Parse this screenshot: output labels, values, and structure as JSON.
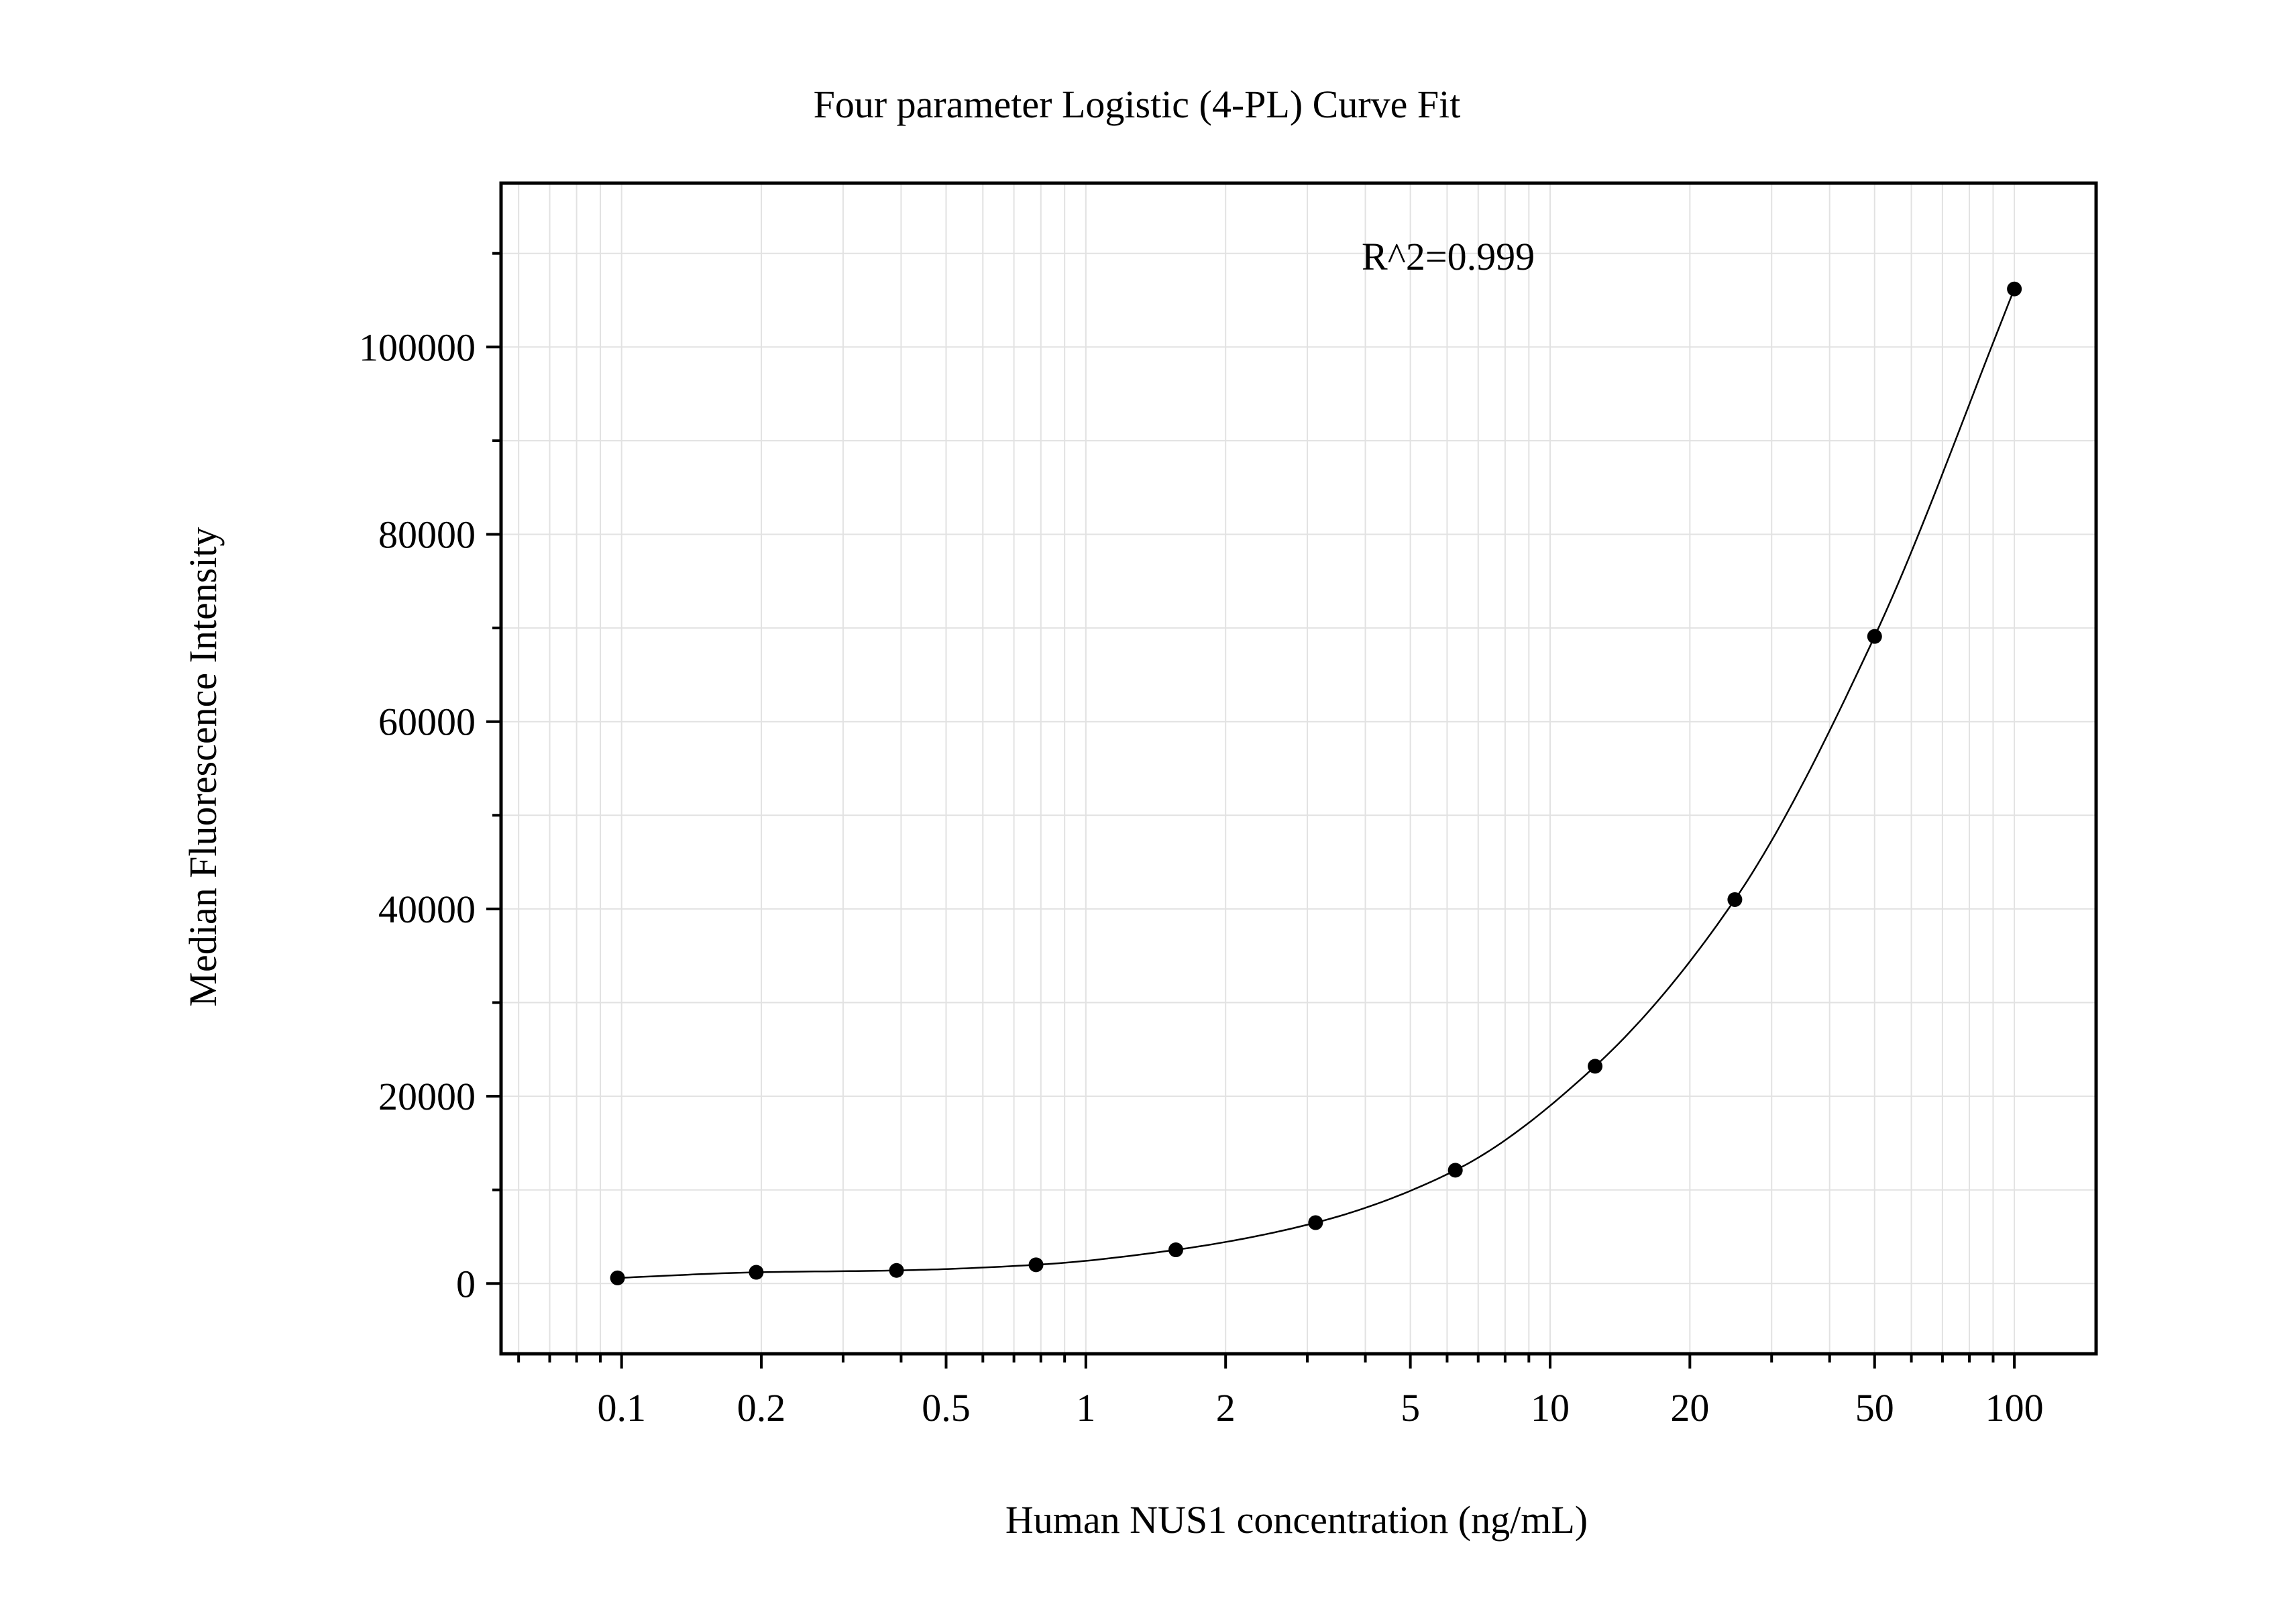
{
  "chart_data": {
    "type": "scatter",
    "title": "Four parameter Logistic (4-PL) Curve Fit",
    "xlabel": "Human NUS1 concentration (ng/mL)",
    "ylabel": "Median Fluorescence Intensity",
    "annotation": "R^2=0.999",
    "x_scale": "log",
    "xlim": [
      0.055,
      150
    ],
    "ylim": [
      -7500,
      117500
    ],
    "x_ticks": [
      0.1,
      0.2,
      0.5,
      1,
      2,
      5,
      10,
      20,
      50,
      100
    ],
    "x_tick_labels": [
      "0.1",
      "0.2",
      "0.5",
      "1",
      "2",
      "5",
      "10",
      "20",
      "50",
      "100"
    ],
    "y_ticks": [
      0,
      20000,
      40000,
      60000,
      80000,
      100000
    ],
    "y_tick_labels": [
      "0",
      "20000",
      "40000",
      "60000",
      "80000",
      "100000"
    ],
    "grid": true,
    "series": [
      {
        "x": [
          0.098,
          0.195,
          0.391,
          0.781,
          1.5625,
          3.125,
          6.25,
          12.5,
          25,
          50,
          100
        ],
        "y": [
          600,
          1200,
          1400,
          2000,
          3600,
          6500,
          12100,
          23200,
          41000,
          69100,
          106200
        ]
      }
    ]
  }
}
